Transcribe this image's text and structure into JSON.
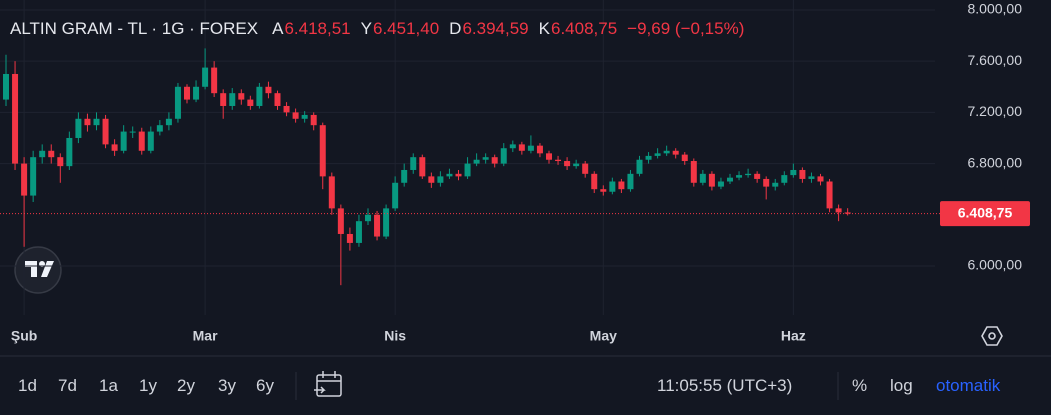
{
  "header": {
    "symbol": "ALTIN GRAM - TL · 1G · FOREX",
    "ohlc": [
      {
        "key": "A",
        "value": "6.418,51"
      },
      {
        "key": "Y",
        "value": "6.451,40"
      },
      {
        "key": "D",
        "value": "6.394,59"
      },
      {
        "key": "K",
        "value": "6.408,75"
      }
    ],
    "change": "−9,69 (−0,15%)"
  },
  "chart_data": {
    "type": "candlestick",
    "categories": [
      null,
      null,
      "Şub",
      null,
      null,
      null,
      null,
      null,
      null,
      null,
      null,
      null,
      null,
      null,
      null,
      null,
      null,
      null,
      null,
      null,
      null,
      null,
      "Mar",
      null,
      null,
      null,
      null,
      null,
      null,
      null,
      null,
      null,
      null,
      null,
      null,
      null,
      null,
      null,
      null,
      null,
      null,
      null,
      null,
      "Nis",
      null,
      null,
      null,
      null,
      null,
      null,
      null,
      null,
      null,
      null,
      null,
      null,
      null,
      null,
      null,
      null,
      null,
      null,
      null,
      null,
      null,
      null,
      "May",
      null,
      null,
      null,
      null,
      null,
      null,
      null,
      null,
      null,
      null,
      null,
      null,
      null,
      null,
      null,
      null,
      null,
      null,
      null,
      null,
      "Haz",
      null,
      null,
      null,
      null,
      null,
      null
    ],
    "open": [
      7300,
      7500,
      6800,
      6550,
      6850,
      6900,
      6850,
      6780,
      7000,
      7150,
      7100,
      7150,
      6950,
      6900,
      7050,
      7050,
      6900,
      7050,
      7100,
      7150,
      7400,
      7300,
      7400,
      7550,
      7350,
      7250,
      7350,
      7300,
      7250,
      7400,
      7350,
      7250,
      7200,
      7150,
      7180,
      7100,
      6700,
      6450,
      6250,
      6180,
      6350,
      6400,
      6230,
      6450,
      6650,
      6750,
      6850,
      6700,
      6650,
      6700,
      6720,
      6700,
      6800,
      6830,
      6850,
      6800,
      6920,
      6950,
      6900,
      6940,
      6880,
      6830,
      6820,
      6780,
      6800,
      6720,
      6600,
      6580,
      6660,
      6600,
      6720,
      6830,
      6860,
      6880,
      6900,
      6870,
      6820,
      6650,
      6720,
      6620,
      6660,
      6690,
      6710,
      6720,
      6680,
      6620,
      6650,
      6710,
      6750,
      6680,
      6700,
      6660,
      6450,
      6418.51
    ],
    "high": [
      7650,
      7600,
      6850,
      6900,
      6950,
      6950,
      6880,
      7050,
      7200,
      7190,
      7200,
      7180,
      6990,
      7100,
      7090,
      7080,
      7090,
      7140,
      7200,
      7430,
      7420,
      7450,
      7700,
      7600,
      7380,
      7390,
      7380,
      7330,
      7430,
      7440,
      7370,
      7280,
      7230,
      7210,
      7200,
      7120,
      6730,
      6480,
      6300,
      6400,
      6450,
      6430,
      6480,
      6700,
      6800,
      6880,
      6870,
      6730,
      6740,
      6760,
      6750,
      6850,
      6880,
      6880,
      6870,
      6960,
      6980,
      6970,
      7020,
      6960,
      6900,
      6860,
      6850,
      6830,
      6820,
      6740,
      6630,
      6690,
      6680,
      6750,
      6860,
      6890,
      6920,
      6940,
      6920,
      6890,
      6840,
      6750,
      6740,
      6690,
      6720,
      6740,
      6760,
      6740,
      6700,
      6680,
      6740,
      6800,
      6770,
      6730,
      6720,
      6680,
      6480,
      6451.4
    ],
    "low": [
      7250,
      6750,
      6150,
      6500,
      6800,
      6800,
      6650,
      6750,
      6960,
      7050,
      7060,
      6920,
      6860,
      6880,
      7000,
      6870,
      6880,
      7020,
      7060,
      7120,
      7270,
      7280,
      7380,
      7320,
      7150,
      7220,
      7260,
      7220,
      7230,
      7310,
      7220,
      7170,
      7120,
      7120,
      7060,
      6600,
      6400,
      5850,
      6120,
      6150,
      6320,
      6200,
      6210,
      6430,
      6620,
      6720,
      6680,
      6610,
      6620,
      6680,
      6670,
      6680,
      6780,
      6800,
      6770,
      6780,
      6890,
      6870,
      6880,
      6850,
      6800,
      6790,
      6750,
      6760,
      6690,
      6570,
      6550,
      6560,
      6570,
      6580,
      6700,
      6800,
      6840,
      6860,
      6840,
      6790,
      6620,
      6630,
      6590,
      6600,
      6640,
      6670,
      6690,
      6650,
      6520,
      6590,
      6630,
      6690,
      6650,
      6650,
      6630,
      6420,
      6350,
      6394.59
    ],
    "close": [
      7500,
      6800,
      6550,
      6850,
      6900,
      6850,
      6780,
      7000,
      7150,
      7100,
      7150,
      6950,
      6900,
      7050,
      7050,
      6900,
      7050,
      7100,
      7150,
      7400,
      7300,
      7400,
      7550,
      7350,
      7250,
      7350,
      7300,
      7250,
      7400,
      7350,
      7250,
      7200,
      7150,
      7180,
      7100,
      6700,
      6450,
      6250,
      6180,
      6350,
      6400,
      6230,
      6450,
      6650,
      6750,
      6850,
      6700,
      6650,
      6700,
      6720,
      6700,
      6800,
      6830,
      6850,
      6800,
      6920,
      6950,
      6900,
      6940,
      6880,
      6830,
      6820,
      6780,
      6800,
      6720,
      6600,
      6580,
      6660,
      6600,
      6720,
      6830,
      6860,
      6880,
      6900,
      6870,
      6820,
      6650,
      6720,
      6620,
      6660,
      6690,
      6710,
      6720,
      6680,
      6620,
      6650,
      6710,
      6750,
      6680,
      6700,
      6660,
      6450,
      6418.51,
      6408.75
    ],
    "up_color": "#089981",
    "down_color": "#f23645",
    "ylim": [
      5617,
      8078
    ],
    "yticks": [
      {
        "value": 6000,
        "label": "6.000,00"
      },
      {
        "value": 6800,
        "label": "6.800,00"
      },
      {
        "value": 7200,
        "label": "7.200,00"
      },
      {
        "value": 7600,
        "label": "7.600,00"
      },
      {
        "value": 8000,
        "label": "8.000,00"
      }
    ],
    "last_price": {
      "value": 6408.75,
      "label": "6.408,75"
    },
    "grid": true
  },
  "toolbar": {
    "ranges": [
      "1d",
      "7d",
      "1a",
      "1y",
      "2y",
      "3y",
      "6y"
    ],
    "time": "11:05:55 (UTC+3)",
    "options": [
      "%",
      "log",
      "otomatik"
    ]
  }
}
